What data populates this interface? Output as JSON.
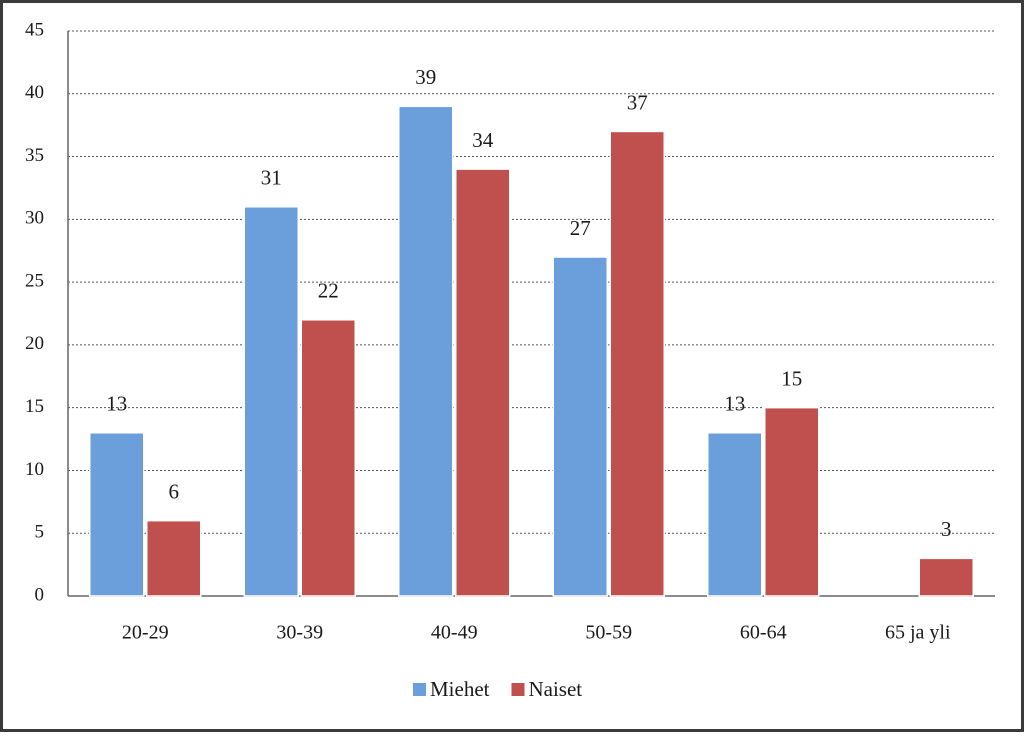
{
  "chart_data": {
    "type": "bar",
    "categories": [
      "20-29",
      "30-39",
      "40-49",
      "50-59",
      "60-64",
      "65 ja yli"
    ],
    "series": [
      {
        "name": "Miehet",
        "color": "#6a9fdb",
        "values": [
          13,
          31,
          39,
          27,
          13,
          null
        ]
      },
      {
        "name": "Naiset",
        "color": "#c0504d",
        "values": [
          6,
          22,
          34,
          37,
          15,
          3
        ]
      }
    ],
    "ylim": [
      0,
      45
    ],
    "yticks": [
      0,
      5,
      10,
      15,
      20,
      25,
      30,
      35,
      40,
      45
    ],
    "grid": true,
    "legend": "bottom"
  }
}
